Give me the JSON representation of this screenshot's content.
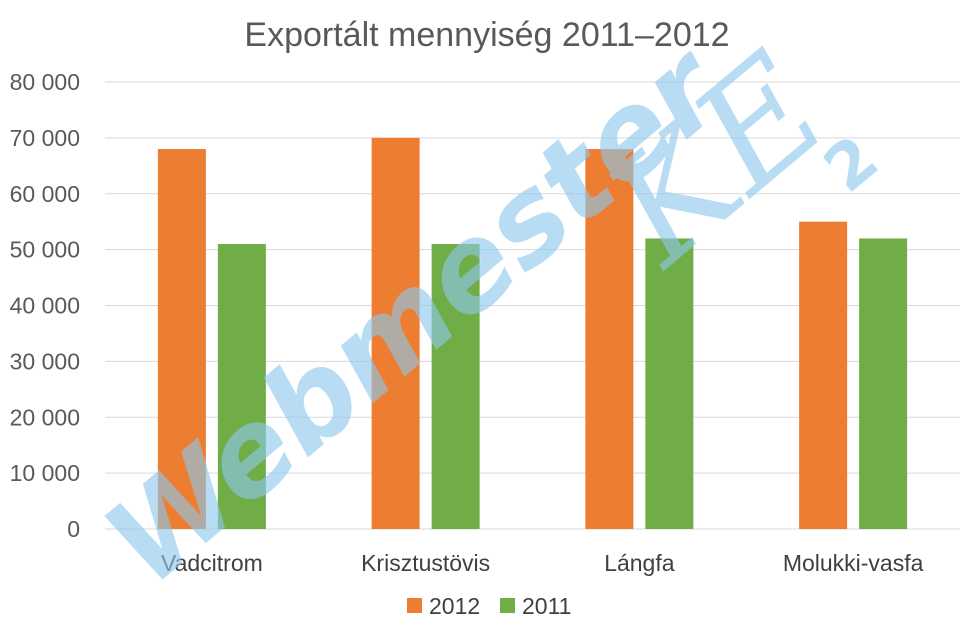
{
  "chart_data": {
    "type": "bar",
    "title": "Exportált mennyiség 2011–2012",
    "categories": [
      "Vadcitrom",
      "Krisztustövis",
      "Lángfa",
      "Molukki-vasfa"
    ],
    "series": [
      {
        "name": "2012",
        "color": "#ED7D31",
        "values": [
          68000,
          70000,
          68000,
          55000
        ]
      },
      {
        "name": "2011",
        "color": "#70AD47",
        "values": [
          51000,
          51000,
          52000,
          52000
        ]
      }
    ],
    "ylim": [
      0,
      80000
    ],
    "y_ticks": [
      0,
      10000,
      20000,
      30000,
      40000,
      50000,
      60000,
      70000,
      80000
    ],
    "y_tick_labels": [
      "0",
      "10 000",
      "20 000",
      "30 000",
      "40 000",
      "50 000",
      "60 000",
      "70 000",
      "80 000"
    ],
    "grid": true,
    "legend_position": "bottom"
  },
  "watermark": {
    "text": "WebmesterKE2",
    "color": "#8EC8EE"
  }
}
